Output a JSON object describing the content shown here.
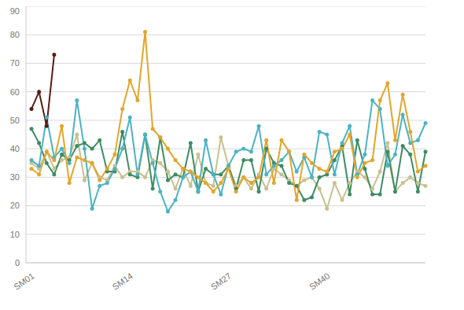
{
  "chart_data": {
    "type": "line",
    "categories": [
      "SM01",
      null,
      null,
      null,
      null,
      null,
      null,
      null,
      null,
      null,
      null,
      null,
      null,
      "SM14",
      null,
      null,
      null,
      null,
      null,
      null,
      null,
      null,
      null,
      null,
      null,
      null,
      "SM27",
      null,
      null,
      null,
      null,
      null,
      null,
      null,
      null,
      null,
      null,
      null,
      null,
      "SM40",
      null,
      null,
      null,
      null,
      null,
      null,
      null,
      null,
      null,
      null,
      null,
      null,
      null
    ],
    "ylim": [
      0,
      90
    ],
    "yticks": [
      0,
      10,
      20,
      30,
      40,
      50,
      60,
      70,
      80,
      90
    ],
    "grid": true,
    "marker": "circle",
    "series": [
      {
        "color": "#c9c08f",
        "values": [
          35,
          33,
          39,
          33,
          36,
          37,
          45,
          29,
          35,
          30,
          29,
          34,
          30,
          32,
          32,
          30,
          36,
          35,
          32,
          26,
          33,
          27,
          38,
          28,
          27,
          44,
          34,
          27,
          30,
          26,
          31,
          26,
          33,
          31,
          29,
          27,
          29,
          30,
          26,
          19,
          28,
          22,
          28,
          32,
          30,
          26,
          32,
          42,
          25,
          28,
          30,
          28,
          27
        ]
      },
      {
        "color": "#3d8c63",
        "values": [
          47,
          42,
          35,
          31,
          38,
          36,
          41,
          42,
          40,
          43,
          32,
          32,
          46,
          31,
          30,
          45,
          26,
          44,
          29,
          31,
          30,
          42,
          25,
          33,
          31,
          31,
          34,
          26,
          36,
          36,
          25,
          40,
          35,
          34,
          28,
          27,
          22,
          23,
          30,
          31,
          36,
          41,
          24,
          43,
          33,
          24,
          24,
          39,
          25,
          41,
          38,
          25,
          39
        ]
      },
      {
        "color": "#4bb3c4",
        "values": [
          36,
          34,
          51,
          37,
          40,
          35,
          57,
          40,
          19,
          27,
          28,
          33,
          40,
          51,
          31,
          45,
          35,
          25,
          18,
          22,
          30,
          32,
          25,
          43,
          31,
          24,
          34,
          39,
          40,
          39,
          48,
          31,
          34,
          36,
          39,
          32,
          37,
          30,
          46,
          45,
          31,
          42,
          48,
          31,
          38,
          57,
          54,
          34,
          38,
          52,
          42,
          43,
          49
        ]
      },
      {
        "color": "#e3a52a",
        "values": [
          33,
          31,
          39,
          36,
          48,
          28,
          37,
          36,
          35,
          29,
          33,
          38,
          54,
          64,
          57,
          81,
          47,
          44,
          40,
          36,
          33,
          32,
          30,
          28,
          25,
          28,
          33,
          25,
          30,
          28,
          30,
          43,
          28,
          43,
          39,
          22,
          38,
          35,
          33,
          32,
          39,
          40,
          45,
          30,
          35,
          36,
          57,
          63,
          43,
          59,
          46,
          32,
          34
        ]
      },
      {
        "color": "#5c1a14",
        "values": [
          54,
          60,
          48,
          73,
          null,
          null,
          null,
          null,
          null,
          null,
          null,
          null,
          null,
          null,
          null,
          null,
          null,
          null,
          null,
          null,
          null,
          null,
          null,
          null,
          null,
          null,
          null,
          null,
          null,
          null,
          null,
          null,
          null,
          null,
          null,
          null,
          null,
          null,
          null,
          null,
          null,
          null,
          null,
          null,
          null,
          null,
          null,
          null,
          null,
          null,
          null,
          null,
          null
        ]
      }
    ]
  }
}
